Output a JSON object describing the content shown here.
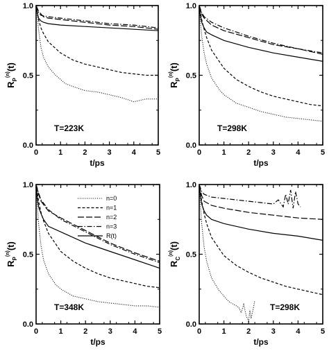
{
  "chart_data": [
    {
      "type": "line",
      "annotation": "T=223K",
      "xlabel": "t/ps",
      "ylabel": {
        "main": "R",
        "sub": "P",
        "sup": "(n)",
        "tail": "(t)"
      },
      "xlim": [
        0,
        5
      ],
      "ylim": [
        0,
        1
      ],
      "xticks": [
        "0",
        "1",
        "2",
        "3",
        "4",
        "5"
      ],
      "yticks": [
        "0.0",
        "0.5",
        "1.0"
      ],
      "series": [
        {
          "style": "dotted",
          "x": [
            0,
            0.05,
            0.1,
            0.2,
            0.3,
            0.5,
            0.8,
            1.0,
            1.2,
            1.5,
            2.0,
            2.5,
            3.0,
            3.5,
            4.0,
            4.5,
            5.0
          ],
          "y": [
            1.0,
            0.93,
            0.83,
            0.7,
            0.63,
            0.56,
            0.5,
            0.47,
            0.44,
            0.42,
            0.39,
            0.38,
            0.36,
            0.34,
            0.31,
            0.33,
            0.33
          ]
        },
        {
          "style": "short-dash",
          "x": [
            0,
            0.1,
            0.2,
            0.3,
            0.5,
            1.0,
            1.5,
            2.0,
            2.5,
            3.0,
            3.5,
            4.0,
            4.5,
            5.0
          ],
          "y": [
            1.0,
            0.9,
            0.84,
            0.8,
            0.74,
            0.66,
            0.61,
            0.58,
            0.56,
            0.54,
            0.52,
            0.51,
            0.5,
            0.5
          ]
        },
        {
          "style": "long-dash",
          "x": [
            0,
            0.1,
            0.2,
            0.3,
            0.5,
            1,
            2,
            3,
            4,
            5
          ],
          "y": [
            1.0,
            0.96,
            0.94,
            0.92,
            0.91,
            0.9,
            0.88,
            0.86,
            0.85,
            0.83
          ]
        },
        {
          "style": "dash-dot",
          "x": [
            0,
            0.1,
            0.2,
            0.5,
            1,
            2,
            3,
            4,
            5
          ],
          "y": [
            1.0,
            0.95,
            0.93,
            0.92,
            0.91,
            0.89,
            0.87,
            0.86,
            0.84
          ]
        },
        {
          "style": "solid",
          "x": [
            0,
            0.05,
            0.1,
            0.2,
            0.3,
            0.5,
            1,
            2,
            3,
            4,
            5
          ],
          "y": [
            1.0,
            0.95,
            0.91,
            0.89,
            0.88,
            0.87,
            0.86,
            0.85,
            0.84,
            0.83,
            0.82
          ]
        }
      ]
    },
    {
      "type": "line",
      "annotation": "T=298K",
      "xlabel": "t/ps",
      "ylabel": {
        "main": "R",
        "sub": "P",
        "sup": "(n)",
        "tail": "(t)"
      },
      "xlim": [
        0,
        5
      ],
      "ylim": [
        0,
        1
      ],
      "xticks": [
        "0",
        "1",
        "2",
        "3",
        "4",
        "5"
      ],
      "yticks": [
        "0.0",
        "0.5",
        "1.0"
      ],
      "series": [
        {
          "style": "dotted",
          "x": [
            0,
            0.05,
            0.1,
            0.2,
            0.3,
            0.5,
            0.8,
            1.0,
            1.5,
            2.0,
            2.5,
            3.0,
            3.5,
            4.0,
            4.5,
            5.0
          ],
          "y": [
            1.0,
            0.88,
            0.78,
            0.66,
            0.58,
            0.48,
            0.4,
            0.36,
            0.3,
            0.27,
            0.24,
            0.22,
            0.2,
            0.19,
            0.18,
            0.17
          ]
        },
        {
          "style": "short-dash",
          "x": [
            0,
            0.1,
            0.2,
            0.3,
            0.5,
            1.0,
            1.5,
            2.0,
            2.5,
            3.0,
            3.5,
            4.0,
            4.5,
            5.0
          ],
          "y": [
            1.0,
            0.9,
            0.83,
            0.77,
            0.68,
            0.55,
            0.47,
            0.42,
            0.38,
            0.35,
            0.33,
            0.31,
            0.29,
            0.28
          ]
        },
        {
          "style": "long-dash",
          "x": [
            0,
            0.1,
            0.2,
            0.5,
            1,
            2,
            3,
            4,
            5
          ],
          "y": [
            1.0,
            0.94,
            0.91,
            0.86,
            0.82,
            0.77,
            0.72,
            0.69,
            0.65
          ]
        },
        {
          "style": "dash-dot",
          "x": [
            0,
            0.1,
            0.2,
            0.5,
            1,
            2,
            3,
            4,
            5
          ],
          "y": [
            1.0,
            0.95,
            0.92,
            0.88,
            0.84,
            0.78,
            0.73,
            0.69,
            0.66
          ]
        },
        {
          "style": "solid",
          "x": [
            0,
            0.05,
            0.1,
            0.2,
            0.3,
            0.5,
            1,
            2,
            3,
            4,
            5
          ],
          "y": [
            1.0,
            0.93,
            0.88,
            0.84,
            0.81,
            0.79,
            0.75,
            0.7,
            0.66,
            0.63,
            0.6
          ]
        }
      ]
    },
    {
      "type": "line",
      "annotation": "T=348K",
      "xlabel": "t/ps",
      "ylabel": {
        "main": "R",
        "sub": "P",
        "sup": "(n)",
        "tail": "(t)"
      },
      "xlim": [
        0,
        5
      ],
      "ylim": [
        0,
        1
      ],
      "xticks": [
        "0",
        "1",
        "2",
        "3",
        "4",
        "5"
      ],
      "yticks": [
        "0.0",
        "0.5",
        "1.0"
      ],
      "legend": {
        "placement": "top-right",
        "entries": [
          {
            "label": "n=0",
            "style": "dotted"
          },
          {
            "label": "n=1",
            "style": "short-dash"
          },
          {
            "label": "n=2",
            "style": "long-dash"
          },
          {
            "label": "n=3",
            "style": "dash-dot"
          },
          {
            "label": "R(t)",
            "style": "solid"
          }
        ]
      },
      "series": [
        {
          "style": "dotted",
          "x": [
            0,
            0.05,
            0.1,
            0.2,
            0.3,
            0.5,
            0.8,
            1.0,
            1.5,
            2.0,
            2.5,
            3.0,
            3.5,
            4.0,
            4.5,
            5.0
          ],
          "y": [
            1.0,
            0.85,
            0.72,
            0.56,
            0.46,
            0.36,
            0.28,
            0.25,
            0.2,
            0.18,
            0.16,
            0.15,
            0.14,
            0.13,
            0.13,
            0.12
          ]
        },
        {
          "style": "short-dash",
          "x": [
            0,
            0.1,
            0.2,
            0.3,
            0.5,
            1.0,
            1.5,
            2.0,
            2.5,
            3.0,
            3.5,
            4.0,
            4.5,
            5.0
          ],
          "y": [
            1.0,
            0.88,
            0.8,
            0.74,
            0.65,
            0.52,
            0.45,
            0.4,
            0.36,
            0.33,
            0.31,
            0.29,
            0.27,
            0.26
          ]
        },
        {
          "style": "long-dash",
          "x": [
            0,
            0.1,
            0.2,
            0.5,
            1,
            2,
            3,
            4,
            5
          ],
          "y": [
            1.0,
            0.93,
            0.88,
            0.81,
            0.76,
            0.67,
            0.58,
            0.51,
            0.45
          ]
        },
        {
          "style": "dash-dot",
          "x": [
            0,
            0.1,
            0.2,
            0.5,
            1,
            2,
            3,
            4,
            5
          ],
          "y": [
            1.0,
            0.94,
            0.89,
            0.82,
            0.75,
            0.66,
            0.57,
            0.5,
            0.44
          ]
        },
        {
          "style": "solid",
          "x": [
            0,
            0.05,
            0.1,
            0.2,
            0.3,
            0.5,
            1,
            2,
            3,
            4,
            5
          ],
          "y": [
            1.0,
            0.9,
            0.84,
            0.79,
            0.75,
            0.7,
            0.66,
            0.58,
            0.52,
            0.46,
            0.4
          ]
        }
      ]
    },
    {
      "type": "line",
      "annotation": "T=298K",
      "xlabel": "t/ps",
      "ylabel": {
        "main": "R",
        "sub": "C",
        "sup": "(n)",
        "tail": "(t)"
      },
      "xlim": [
        0,
        5
      ],
      "ylim": [
        0,
        1
      ],
      "xticks": [
        "0",
        "1",
        "2",
        "3",
        "4",
        "5"
      ],
      "yticks": [
        "0.0",
        "0.5",
        "1.0"
      ],
      "series": [
        {
          "style": "dotted",
          "x": [
            0,
            0.05,
            0.1,
            0.2,
            0.3,
            0.5,
            0.8,
            1.0,
            1.2,
            1.4,
            1.6,
            1.7,
            1.8,
            1.9,
            2.0,
            2.05,
            2.1,
            2.2,
            2.25
          ],
          "y": [
            1.0,
            0.85,
            0.72,
            0.55,
            0.45,
            0.33,
            0.24,
            0.2,
            0.16,
            0.14,
            0.12,
            0.08,
            0.14,
            0.06,
            0.02,
            0.1,
            0.04,
            0.12,
            0.17
          ]
        },
        {
          "style": "short-dash",
          "x": [
            0,
            0.1,
            0.2,
            0.3,
            0.5,
            1.0,
            1.5,
            2.0,
            2.5,
            3.0,
            3.5,
            4.0,
            4.5,
            5.0
          ],
          "y": [
            1.0,
            0.88,
            0.79,
            0.72,
            0.62,
            0.49,
            0.42,
            0.37,
            0.33,
            0.3,
            0.27,
            0.25,
            0.23,
            0.21
          ]
        },
        {
          "style": "long-dash",
          "x": [
            0,
            0.1,
            0.2,
            0.5,
            1,
            2,
            3,
            4,
            5
          ],
          "y": [
            1.0,
            0.92,
            0.88,
            0.85,
            0.83,
            0.8,
            0.78,
            0.76,
            0.75
          ]
        },
        {
          "style": "dash-dot",
          "x": [
            0,
            0.1,
            0.2,
            0.5,
            1,
            1.5,
            2,
            2.5,
            3,
            3.2,
            3.4,
            3.5,
            3.6,
            3.7,
            3.8,
            3.9,
            4.0,
            4.1
          ],
          "y": [
            1.0,
            0.95,
            0.93,
            0.91,
            0.9,
            0.89,
            0.88,
            0.87,
            0.86,
            0.89,
            0.84,
            0.93,
            0.86,
            0.96,
            0.83,
            0.95,
            0.86,
            0.84
          ]
        },
        {
          "style": "solid",
          "x": [
            0,
            0.05,
            0.1,
            0.2,
            0.3,
            0.5,
            1,
            2,
            3,
            4,
            5
          ],
          "y": [
            1.0,
            0.92,
            0.86,
            0.81,
            0.78,
            0.75,
            0.72,
            0.68,
            0.65,
            0.63,
            0.6
          ]
        }
      ]
    }
  ]
}
